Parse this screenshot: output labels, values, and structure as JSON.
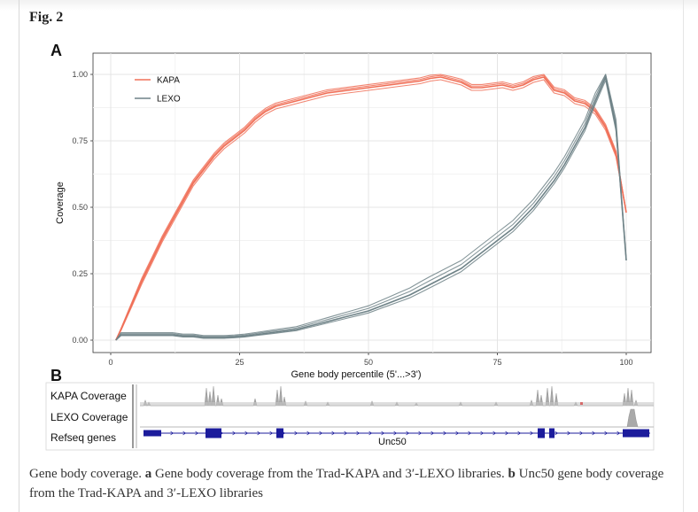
{
  "figure": {
    "title": "Fig. 2",
    "panel_a": "A",
    "panel_b": "B"
  },
  "chart_data": {
    "type": "line",
    "title": "",
    "xlabel": "Gene body percentile (5'...>3')",
    "ylabel": "Coverage",
    "xlim": [
      0,
      100
    ],
    "ylim": [
      0,
      1
    ],
    "xticks": [
      0,
      25,
      50,
      75,
      100
    ],
    "yticks": [
      0.0,
      0.25,
      0.5,
      0.75,
      1.0
    ],
    "ytick_labels": [
      "0.00",
      "0.25",
      "0.50",
      "0.75",
      "1.00"
    ],
    "grid": true,
    "legend": "top-left",
    "x": [
      1,
      2,
      4,
      6,
      8,
      10,
      12,
      14,
      16,
      18,
      20,
      22,
      24,
      26,
      28,
      30,
      32,
      34,
      36,
      38,
      40,
      42,
      44,
      46,
      48,
      50,
      52,
      54,
      56,
      58,
      60,
      62,
      64,
      66,
      68,
      70,
      72,
      74,
      76,
      78,
      80,
      82,
      84,
      86,
      88,
      90,
      92,
      94,
      96,
      98,
      100
    ],
    "series": [
      {
        "name": "KAPA",
        "color": "#f07058",
        "values": [
          0.0,
          0.04,
          0.13,
          0.22,
          0.3,
          0.38,
          0.45,
          0.52,
          0.59,
          0.64,
          0.69,
          0.73,
          0.76,
          0.79,
          0.83,
          0.86,
          0.88,
          0.89,
          0.9,
          0.91,
          0.92,
          0.93,
          0.935,
          0.94,
          0.945,
          0.95,
          0.955,
          0.96,
          0.965,
          0.97,
          0.975,
          0.985,
          0.99,
          0.98,
          0.97,
          0.95,
          0.95,
          0.955,
          0.96,
          0.95,
          0.96,
          0.98,
          0.99,
          0.94,
          0.93,
          0.9,
          0.89,
          0.86,
          0.8,
          0.7,
          0.48
        ]
      },
      {
        "name": "LEXO",
        "color": "#6e8287",
        "values": [
          0.0,
          0.02,
          0.02,
          0.02,
          0.02,
          0.02,
          0.02,
          0.015,
          0.015,
          0.01,
          0.01,
          0.01,
          0.012,
          0.015,
          0.02,
          0.025,
          0.03,
          0.035,
          0.04,
          0.05,
          0.06,
          0.07,
          0.08,
          0.09,
          0.1,
          0.11,
          0.125,
          0.14,
          0.155,
          0.17,
          0.19,
          0.21,
          0.23,
          0.25,
          0.27,
          0.3,
          0.33,
          0.36,
          0.39,
          0.42,
          0.46,
          0.5,
          0.55,
          0.6,
          0.66,
          0.73,
          0.8,
          0.9,
          0.99,
          0.8,
          0.3
        ]
      }
    ]
  },
  "tracks": {
    "kapa": "KAPA Coverage",
    "lexo": "LEXO Coverage",
    "refseq": "Refseq genes",
    "gene_name": "Unc50"
  },
  "caption": {
    "part1": "Gene body coverage.",
    "a_label": "a",
    "a_text": "Gene body coverage from the Trad-KAPA and 3′-LEXO libraries.",
    "b_label": "b",
    "b_text": "Unc50 gene body coverage from the Trad-KAPA and 3′-LEXO libraries"
  }
}
